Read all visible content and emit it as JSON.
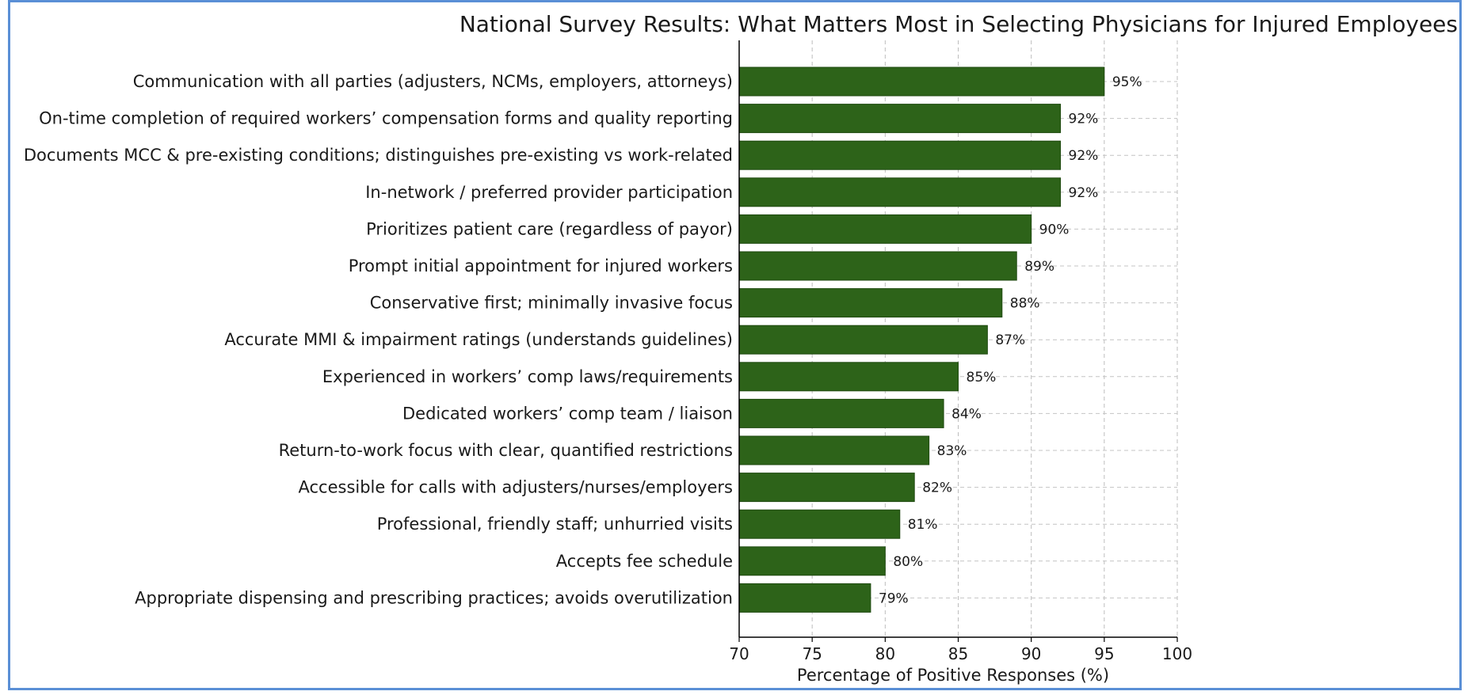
{
  "chart_data": {
    "type": "bar",
    "orientation": "horizontal",
    "title": "National Survey Results: What Matters Most in Selecting Physicians for Injured Employees",
    "xlabel": "Percentage of Positive Responses (%)",
    "ylabel": "",
    "xlim": [
      70,
      100
    ],
    "xticks": [
      "70",
      "75",
      "80",
      "85",
      "90",
      "95",
      "100"
    ],
    "grid": true,
    "bar_color": "#2d6319",
    "categories": [
      "Communication with all parties (adjusters, NCMs, employers, attorneys)",
      "On-time completion of required workers’ compensation forms and quality reporting",
      "Documents MCC & pre-existing conditions; distinguishes pre-existing vs work-related",
      "In-network / preferred provider participation",
      "Prioritizes patient care (regardless of payor)",
      "Prompt initial appointment for injured workers",
      "Conservative first; minimally invasive focus",
      "Accurate MMI & impairment ratings (understands guidelines)",
      "Experienced in workers’ comp laws/requirements",
      "Dedicated workers’ comp team / liaison",
      "Return-to-work focus with clear, quantified restrictions",
      "Accessible for calls with adjusters/nurses/employers",
      "Professional, friendly staff; unhurried visits",
      "Accepts fee schedule",
      "Appropriate dispensing and prescribing practices; avoids overutilization"
    ],
    "values": [
      95,
      92,
      92,
      92,
      90,
      89,
      88,
      87,
      85,
      84,
      83,
      82,
      81,
      80,
      79
    ],
    "data_labels": [
      "95%",
      "92%",
      "92%",
      "92%",
      "90%",
      "89%",
      "88%",
      "87%",
      "85%",
      "84%",
      "83%",
      "82%",
      "81%",
      "80%",
      "79%"
    ]
  }
}
